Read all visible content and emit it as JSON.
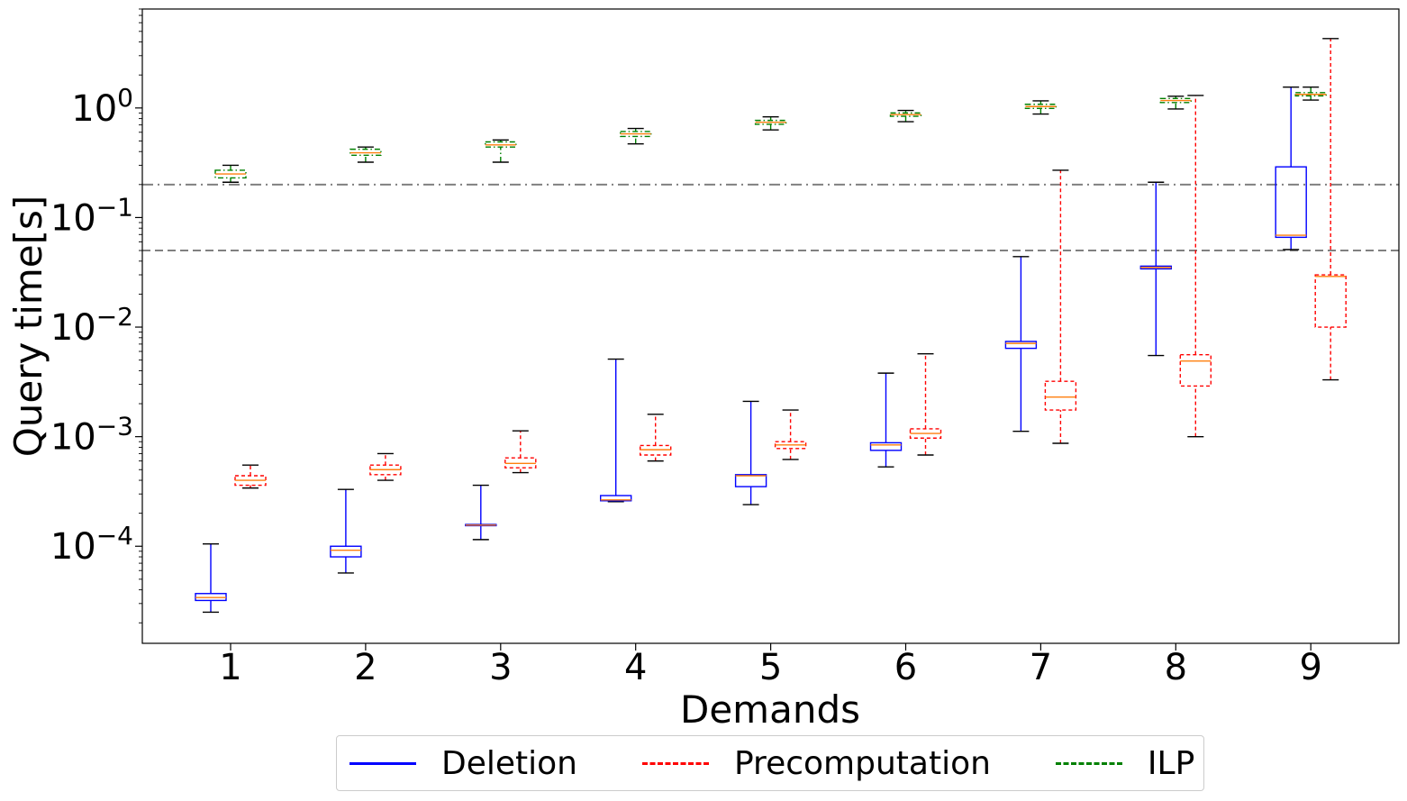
{
  "chart_data": {
    "type": "box",
    "xlabel": "Demands",
    "ylabel": "Query time[s]",
    "yscale": "log",
    "ylim": [
      1.3e-05,
      8
    ],
    "categories": [
      "1",
      "2",
      "3",
      "4",
      "5",
      "6",
      "7",
      "8",
      "9"
    ],
    "yticks": [
      {
        "value": 0.0001,
        "label_base": "10",
        "label_exp": "−4"
      },
      {
        "value": 0.001,
        "label_base": "10",
        "label_exp": "−3"
      },
      {
        "value": 0.01,
        "label_base": "10",
        "label_exp": "−2"
      },
      {
        "value": 0.1,
        "label_base": "10",
        "label_exp": "−1"
      },
      {
        "value": 1,
        "label_base": "10",
        "label_exp": "0"
      }
    ],
    "reference_lines": [
      {
        "value": 0.2,
        "style": "dashdot",
        "color": "#808080"
      },
      {
        "value": 0.05,
        "style": "dashed",
        "color": "#808080"
      }
    ],
    "series": [
      {
        "name": "Deletion",
        "color": "#0000ff",
        "linestyle": "solid",
        "boxes": [
          {
            "whislo": 2.5e-05,
            "q1": 3.2e-05,
            "med": 3.4e-05,
            "q3": 3.7e-05,
            "whishi": 0.000105
          },
          {
            "whislo": 5.7e-05,
            "q1": 8e-05,
            "med": 9.2e-05,
            "q3": 0.0001,
            "whishi": 0.00033
          },
          {
            "whislo": 0.000115,
            "q1": 0.000154,
            "med": 0.000156,
            "q3": 0.000158,
            "whishi": 0.00036
          },
          {
            "whislo": 0.000255,
            "q1": 0.00026,
            "med": 0.000265,
            "q3": 0.00029,
            "whishi": 0.0051
          },
          {
            "whislo": 0.00024,
            "q1": 0.00035,
            "med": 0.00044,
            "q3": 0.00045,
            "whishi": 0.0021
          },
          {
            "whislo": 0.00053,
            "q1": 0.00075,
            "med": 0.00084,
            "q3": 0.00088,
            "whishi": 0.0038
          },
          {
            "whislo": 0.00112,
            "q1": 0.0064,
            "med": 0.0071,
            "q3": 0.0074,
            "whishi": 0.044
          },
          {
            "whislo": 0.0055,
            "q1": 0.034,
            "med": 0.035,
            "q3": 0.036,
            "whishi": 0.21
          },
          {
            "whislo": 0.051,
            "q1": 0.066,
            "med": 0.069,
            "q3": 0.29,
            "whishi": 1.55
          }
        ]
      },
      {
        "name": "Precomputation",
        "color": "#ff0000",
        "linestyle": "dashed",
        "boxes": [
          {
            "whislo": 0.00034,
            "q1": 0.00036,
            "med": 0.0004,
            "q3": 0.00044,
            "whishi": 0.00055
          },
          {
            "whislo": 0.0004,
            "q1": 0.00045,
            "med": 0.0005,
            "q3": 0.00055,
            "whishi": 0.0007
          },
          {
            "whislo": 0.00047,
            "q1": 0.00052,
            "med": 0.00057,
            "q3": 0.00064,
            "whishi": 0.00113
          },
          {
            "whislo": 0.0006,
            "q1": 0.00068,
            "med": 0.00076,
            "q3": 0.00083,
            "whishi": 0.0016
          },
          {
            "whislo": 0.00062,
            "q1": 0.00078,
            "med": 0.00084,
            "q3": 0.0009,
            "whishi": 0.00175
          },
          {
            "whislo": 0.00068,
            "q1": 0.00097,
            "med": 0.00107,
            "q3": 0.00118,
            "whishi": 0.0057
          },
          {
            "whislo": 0.00087,
            "q1": 0.00175,
            "med": 0.0023,
            "q3": 0.0032,
            "whishi": 0.27
          },
          {
            "whislo": 0.001,
            "q1": 0.0029,
            "med": 0.0049,
            "q3": 0.0056,
            "whishi": 1.3
          },
          {
            "whislo": 0.0033,
            "q1": 0.01,
            "med": 0.029,
            "q3": 0.03,
            "whishi": 4.3
          }
        ]
      },
      {
        "name": "ILP",
        "color": "#008000",
        "linestyle": "dashdot",
        "boxes": [
          {
            "whislo": 0.21,
            "q1": 0.23,
            "med": 0.25,
            "q3": 0.27,
            "whishi": 0.3
          },
          {
            "whislo": 0.32,
            "q1": 0.37,
            "med": 0.39,
            "q3": 0.42,
            "whishi": 0.44
          },
          {
            "whislo": 0.32,
            "q1": 0.44,
            "med": 0.46,
            "q3": 0.49,
            "whishi": 0.51
          },
          {
            "whislo": 0.47,
            "q1": 0.55,
            "med": 0.58,
            "q3": 0.61,
            "whishi": 0.65
          },
          {
            "whislo": 0.63,
            "q1": 0.71,
            "med": 0.74,
            "q3": 0.77,
            "whishi": 0.83
          },
          {
            "whislo": 0.75,
            "q1": 0.84,
            "med": 0.87,
            "q3": 0.9,
            "whishi": 0.95
          },
          {
            "whislo": 0.88,
            "q1": 0.99,
            "med": 1.03,
            "q3": 1.08,
            "whishi": 1.16
          },
          {
            "whislo": 0.98,
            "q1": 1.12,
            "med": 1.17,
            "q3": 1.22,
            "whishi": 1.28
          },
          {
            "whislo": 1.18,
            "q1": 1.29,
            "med": 1.33,
            "q3": 1.38,
            "whishi": 1.55
          }
        ]
      }
    ],
    "legend": {
      "placement": "bottom-center",
      "columns": 3
    },
    "grid": false
  }
}
